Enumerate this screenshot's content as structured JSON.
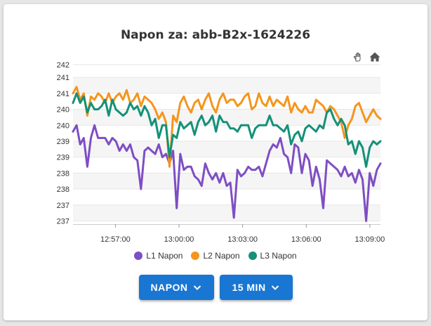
{
  "chart_data": {
    "type": "line",
    "title": "Napon za: abb-B2x-1624226",
    "xlabel": "",
    "ylabel": "",
    "x_tick_labels": [
      "12:57:00",
      "13:00:00",
      "13:03:00",
      "13:06:00",
      "13:09:00"
    ],
    "x_tick_seconds": [
      47820,
      48000,
      48180,
      48360,
      48540
    ],
    "x_start_seconds": 47700,
    "x_end_seconds": 48570,
    "xlim": [
      "12:55:00",
      "13:09:30"
    ],
    "ylim": [
      236.8,
      241.8
    ],
    "y_ticks": [
      236.9,
      237.4,
      237.9,
      238.4,
      238.9,
      239.4,
      239.9,
      240.4,
      240.9,
      241.4,
      241.8
    ],
    "y_tick_labels": [
      "237",
      "237",
      "238",
      "238",
      "239",
      "239",
      "240",
      "240",
      "241",
      "241",
      "242"
    ],
    "grid": true,
    "legend_position": "bottom",
    "series": [
      {
        "name": "L1 Napon",
        "color": "#7e4ec4",
        "values": [
          239.7,
          239.9,
          239.3,
          239.5,
          238.6,
          239.5,
          239.9,
          239.5,
          239.5,
          239.5,
          239.3,
          239.5,
          239.4,
          239.1,
          239.3,
          239.1,
          239.3,
          238.9,
          238.8,
          237.9,
          239.1,
          239.2,
          239.1,
          239.0,
          239.3,
          238.9,
          239.0,
          238.7,
          239.1,
          237.3,
          239.0,
          238.5,
          238.6,
          238.6,
          238.3,
          238.2,
          238.0,
          238.7,
          238.4,
          238.2,
          238.4,
          238.1,
          238.4,
          238.0,
          238.1,
          237.0,
          238.5,
          238.3,
          238.4,
          238.6,
          238.5,
          238.5,
          238.6,
          238.3,
          238.7,
          239.1,
          239.3,
          239.2,
          239.5,
          239.0,
          238.9,
          238.4,
          239.3,
          239.2,
          238.4,
          239.0,
          238.8,
          238.0,
          238.6,
          238.2,
          237.3,
          238.8,
          238.7,
          238.6,
          238.5,
          238.3,
          238.6,
          238.3,
          238.4,
          238.1,
          238.5,
          238.2,
          236.9,
          238.4,
          238.0,
          238.5,
          238.7
        ]
      },
      {
        "name": "L2 Napon",
        "color": "#f5951d",
        "values": [
          240.9,
          241.1,
          240.7,
          240.9,
          240.2,
          240.8,
          240.7,
          240.9,
          240.8,
          240.6,
          240.9,
          240.6,
          240.8,
          240.9,
          240.7,
          241.0,
          240.6,
          240.7,
          240.9,
          240.5,
          240.8,
          240.7,
          240.6,
          240.4,
          240.1,
          240.3,
          240.0,
          238.6,
          240.2,
          240.0,
          240.6,
          240.8,
          240.5,
          240.3,
          240.6,
          240.7,
          240.4,
          240.7,
          240.9,
          240.5,
          240.3,
          240.7,
          240.9,
          240.6,
          240.7,
          240.7,
          240.5,
          240.6,
          240.8,
          240.9,
          240.4,
          240.5,
          240.9,
          240.6,
          240.5,
          240.8,
          240.5,
          240.7,
          240.6,
          240.5,
          240.8,
          240.3,
          240.6,
          240.4,
          240.3,
          240.5,
          240.3,
          240.3,
          240.7,
          240.6,
          240.5,
          240.3,
          240.5,
          240.4,
          240.2,
          240.0,
          239.5,
          239.9,
          240.1,
          240.5,
          240.6,
          240.3,
          240.0,
          240.2,
          240.4,
          240.2,
          240.1
        ]
      },
      {
        "name": "L3 Napon",
        "color": "#149178",
        "values": [
          240.6,
          240.9,
          240.6,
          240.8,
          240.3,
          240.6,
          240.4,
          240.4,
          240.5,
          240.7,
          240.2,
          240.7,
          240.4,
          240.3,
          240.2,
          240.3,
          240.6,
          240.4,
          240.5,
          240.2,
          240.5,
          240.3,
          239.9,
          240.1,
          239.5,
          239.9,
          239.9,
          238.9,
          239.6,
          239.5,
          240.0,
          239.8,
          239.9,
          240.0,
          239.6,
          240.0,
          240.2,
          239.9,
          240.0,
          240.2,
          239.7,
          240.2,
          240.0,
          240.0,
          239.8,
          239.8,
          239.7,
          239.9,
          239.9,
          239.9,
          239.5,
          239.8,
          239.9,
          239.9,
          239.9,
          240.2,
          239.9,
          239.9,
          239.8,
          239.7,
          239.9,
          239.3,
          239.6,
          239.7,
          239.4,
          239.8,
          239.9,
          239.8,
          239.7,
          239.9,
          239.8,
          240.3,
          240.4,
          240.1,
          239.9,
          240.1,
          239.9,
          239.3,
          239.4,
          239.0,
          239.4,
          239.2,
          238.6,
          239.2,
          239.4,
          239.3,
          239.4
        ]
      }
    ]
  },
  "toolbar": {
    "pan_icon": "hand-icon",
    "home_icon": "home-icon"
  },
  "controls": {
    "metric_label": "NAPON",
    "range_label": "15 MIN",
    "button_color": "#1976d2"
  }
}
